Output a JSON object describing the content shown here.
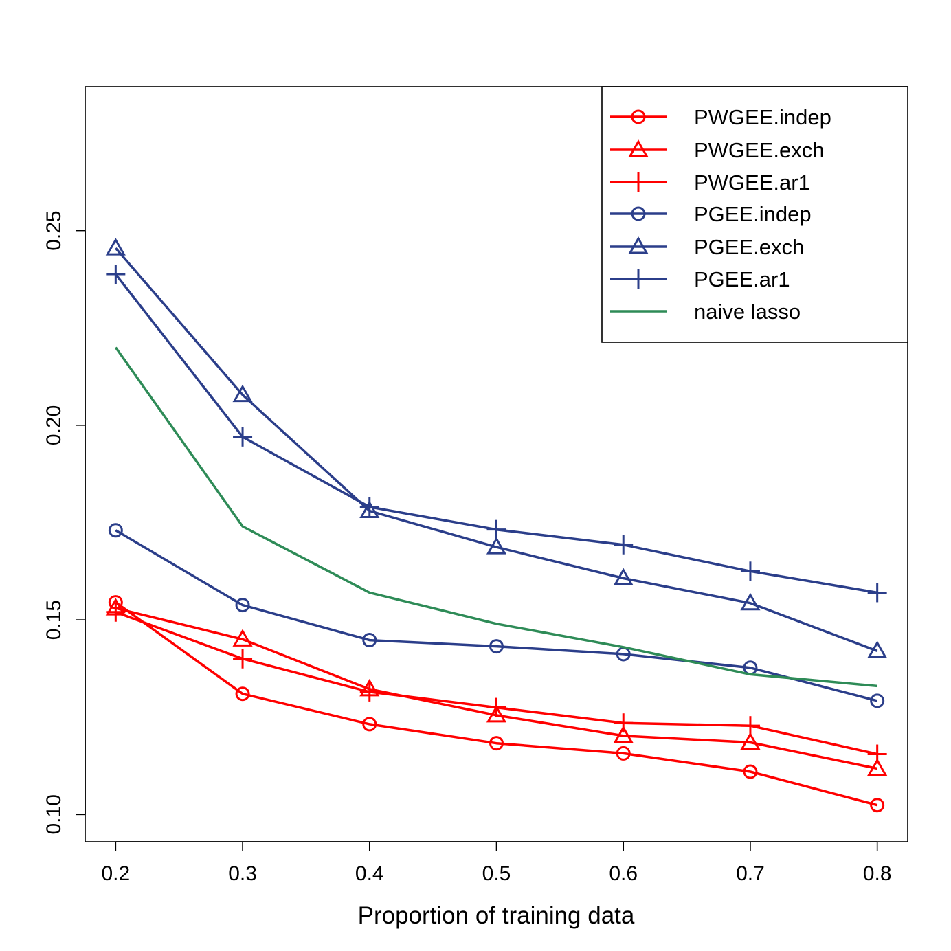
{
  "chart_data": {
    "type": "line",
    "title": "",
    "xlabel": "Proportion of training data",
    "ylabel": "",
    "x": [
      0.2,
      0.3,
      0.4,
      0.5,
      0.6,
      0.7,
      0.8
    ],
    "x_tick_labels": [
      "0.2",
      "0.3",
      "0.4",
      "0.5",
      "0.6",
      "0.7",
      "0.8"
    ],
    "y_ticks": [
      0.1,
      0.15,
      0.2,
      0.25
    ],
    "y_tick_labels": [
      "0.10",
      "0.15",
      "0.20",
      "0.25"
    ],
    "xlim": [
      0.176,
      0.824
    ],
    "ylim": [
      0.093,
      0.287
    ],
    "grid": false,
    "legend_position": "top-right",
    "series": [
      {
        "name": "PWGEE.indep",
        "color": "#ff0000",
        "marker": "circle",
        "values": [
          0.1545,
          0.131,
          0.1232,
          0.1183,
          0.1157,
          0.111,
          0.1024
        ]
      },
      {
        "name": "PWGEE.exch",
        "color": "#ff0000",
        "marker": "triangle",
        "values": [
          0.153,
          0.145,
          0.1322,
          0.1255,
          0.1202,
          0.1185,
          0.1118
        ]
      },
      {
        "name": "PWGEE.ar1",
        "color": "#ff0000",
        "marker": "plus",
        "values": [
          0.152,
          0.14,
          0.1315,
          0.1275,
          0.1235,
          0.1228,
          0.1155
        ]
      },
      {
        "name": "PGEE.indep",
        "color": "#2b3e8a",
        "marker": "circle",
        "values": [
          0.173,
          0.1538,
          0.1448,
          0.1432,
          0.1412,
          0.1377,
          0.1292
        ]
      },
      {
        "name": "PGEE.exch",
        "color": "#2b3e8a",
        "marker": "triangle",
        "values": [
          0.2455,
          0.2078,
          0.178,
          0.1687,
          0.1607,
          0.1543,
          0.142
        ]
      },
      {
        "name": "PGEE.ar1",
        "color": "#2b3e8a",
        "marker": "plus",
        "values": [
          0.2388,
          0.197,
          0.179,
          0.1732,
          0.1693,
          0.1625,
          0.157
        ]
      },
      {
        "name": "naive lasso",
        "color": "#2e8b57",
        "marker": "none",
        "values": [
          0.22,
          0.174,
          0.157,
          0.149,
          0.143,
          0.136,
          0.133
        ]
      }
    ]
  }
}
